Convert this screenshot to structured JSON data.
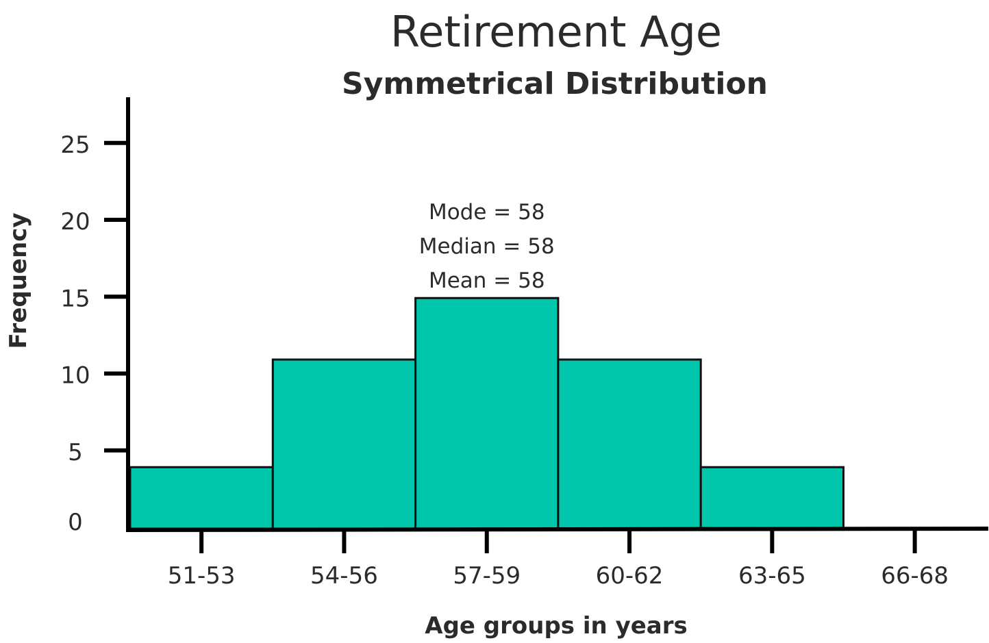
{
  "chart_data": {
    "type": "bar",
    "title": "Retirement Age",
    "subtitle": "Symmetrical Distribution",
    "xlabel": "Age groups in years",
    "ylabel": "Frequency",
    "categories": [
      "51-53",
      "54-56",
      "57-59",
      "60-62",
      "63-65",
      "66-68"
    ],
    "values": [
      4,
      11,
      15,
      11,
      4,
      0
    ],
    "ylim": [
      0,
      28
    ],
    "yticks": [
      0,
      5,
      10,
      15,
      20,
      25
    ],
    "annotations": [
      "Mode = 58",
      "Median = 58",
      "Mean = 58"
    ],
    "grid": false,
    "legend": "none",
    "colors": {
      "bar": "#00c7ac",
      "axis": "#000000",
      "text": "#2b2b2b"
    }
  }
}
